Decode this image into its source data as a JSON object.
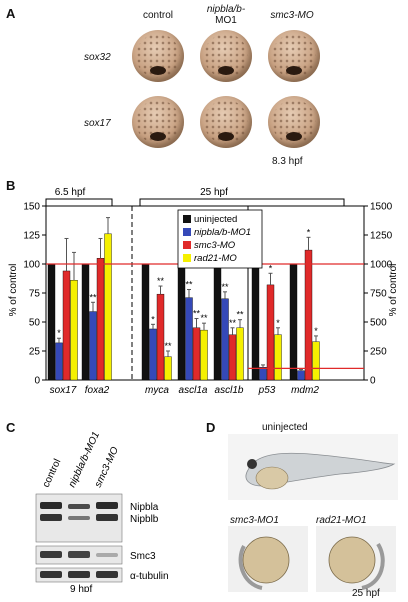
{
  "panelA": {
    "label": "A",
    "columns": [
      "control",
      "nipbla/b-",
      "MO1",
      "smc3-MO"
    ],
    "rows": [
      "sox32",
      "sox17"
    ],
    "stage": "8.3 hpf"
  },
  "panelB": {
    "label": "B",
    "group1": "6.5 hpf",
    "group2": "25 hpf"
  },
  "chart_data": {
    "type": "bar",
    "categories": [
      "sox17",
      "foxa2",
      "myca",
      "ascl1a",
      "ascl1b",
      "p53",
      "mdm2"
    ],
    "series": [
      {
        "name": "uninjected",
        "color": "#111111",
        "values": [
          100,
          100,
          100,
          100,
          100,
          100,
          100
        ]
      },
      {
        "name": "nipbla/b-MO1",
        "color": "#3549b8",
        "values": [
          32,
          59,
          44,
          71,
          70,
          11,
          8
        ]
      },
      {
        "name": "smc3-MO",
        "color": "#e02a2a",
        "values": [
          94,
          105,
          74,
          45,
          39,
          82,
          112
        ]
      },
      {
        "name": "rad21-MO",
        "color": "#f5f000",
        "values": [
          86,
          126,
          20,
          43,
          45,
          39,
          33
        ]
      }
    ],
    "errors": [
      [
        0,
        0,
        0,
        0,
        0,
        0,
        0
      ],
      [
        4,
        8,
        4,
        7,
        6,
        2,
        1
      ],
      [
        28,
        17,
        7,
        8,
        6,
        10,
        11
      ],
      [
        24,
        14,
        5,
        6,
        7,
        6,
        5
      ]
    ],
    "stars": [
      [
        "",
        "",
        "",
        "",
        "",
        "",
        ""
      ],
      [
        "*",
        "**",
        "*",
        "**",
        "**",
        "",
        ""
      ],
      [
        "",
        "",
        "**",
        "**",
        "**",
        "*",
        "*"
      ],
      [
        "",
        "",
        "**",
        "**",
        "**",
        "*",
        "*"
      ]
    ],
    "ylabel": "% of control",
    "ylim": [
      0,
      150
    ],
    "yticks_left": [
      "0",
      "25",
      "50",
      "75",
      "100",
      "125",
      "150"
    ],
    "yticks_right": [
      "0",
      "250",
      "500",
      "750",
      "1000",
      "1250",
      "1500"
    ],
    "reference_line": 100
  },
  "panelC": {
    "label": "C",
    "lanes": [
      "control",
      "nipbla/b-MO1",
      "smc3-MO"
    ],
    "bands": [
      "Nipbla",
      "Nipblb",
      "Smc3",
      "α-tubulin"
    ],
    "stage": "9 hpf"
  },
  "panelD": {
    "label": "D",
    "top": "uninjected",
    "left": "smc3-MO1",
    "right": "rad21-MO1",
    "stage": "25 hpf"
  }
}
